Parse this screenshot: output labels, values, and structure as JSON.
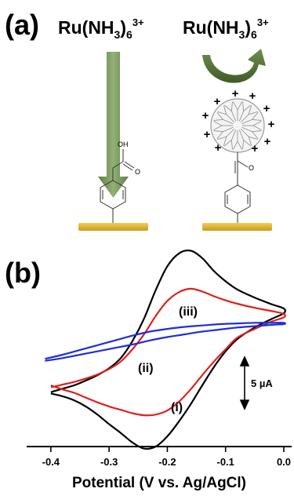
{
  "panel_a": {
    "label": "(a)",
    "ion_left": {
      "main": "Ru(NH",
      "sub": "3",
      "close": ")",
      "sub2": "6",
      "sup": "3+"
    },
    "ion_right": {
      "main": "Ru(NH",
      "sub": "3",
      "close": ")",
      "sub2": "6",
      "sup": "3+"
    },
    "left_molecule": {
      "oh": "OH",
      "carbonyl_o": "O"
    },
    "right_molecule": {
      "carbonyl_o": "O"
    },
    "plus_sign": "+",
    "colors": {
      "arrow": "#5b7b3c",
      "electrode": "#e0b93a",
      "dendrimer": "#9a9a9a"
    }
  },
  "panel_b": {
    "label": "(b)",
    "scale_bar": "5 µA",
    "curve_labels": {
      "i": "(i)",
      "ii": "(ii)",
      "iii": "(iii)"
    },
    "x_axis_title": "Potential (V vs. Ag/AgCl)"
  },
  "chart_data": {
    "type": "line",
    "xlabel": "Potential (V vs. Ag/AgCl)",
    "ylabel": "",
    "xlim": [
      -0.42,
      0.0
    ],
    "ylim": [
      -15,
      15
    ],
    "x_ticks": [
      -0.4,
      -0.3,
      -0.2,
      -0.1,
      0.0
    ],
    "x_tick_labels": [
      "-0.4",
      "-0.3",
      "-0.2",
      "-0.1",
      "0.0"
    ],
    "grid": false,
    "series": [
      {
        "name": "(i)",
        "color": "#000000",
        "x": [
          -0.4,
          -0.38,
          -0.36,
          -0.34,
          -0.32,
          -0.3,
          -0.28,
          -0.26,
          -0.24,
          -0.22,
          -0.2,
          -0.18,
          -0.16,
          -0.14,
          -0.12,
          -0.1,
          -0.08,
          -0.05,
          -0.02,
          0.0,
          0.0,
          -0.02,
          -0.05,
          -0.08,
          -0.1,
          -0.12,
          -0.14,
          -0.16,
          -0.18,
          -0.2,
          -0.22,
          -0.24,
          -0.26,
          -0.28,
          -0.3,
          -0.32,
          -0.34,
          -0.36,
          -0.38,
          -0.4
        ],
        "y": [
          -7.0,
          -6.5,
          -6.0,
          -5.3,
          -4.5,
          -3.5,
          -2.0,
          0.5,
          3.8,
          8.0,
          11.5,
          13.4,
          13.8,
          12.7,
          10.8,
          9.3,
          8.1,
          6.9,
          5.9,
          5.3,
          4.6,
          3.8,
          2.5,
          0.8,
          -1.0,
          -3.3,
          -6.0,
          -8.8,
          -11.3,
          -13.5,
          -15.0,
          -15.3,
          -14.4,
          -13.0,
          -11.7,
          -10.3,
          -9.1,
          -8.2,
          -7.6,
          -7.2
        ]
      },
      {
        "name": "(ii)",
        "color": "#e0201c",
        "x": [
          -0.4,
          -0.38,
          -0.36,
          -0.34,
          -0.32,
          -0.3,
          -0.28,
          -0.26,
          -0.24,
          -0.22,
          -0.2,
          -0.18,
          -0.16,
          -0.14,
          -0.12,
          -0.1,
          -0.08,
          -0.05,
          -0.02,
          0.0,
          0.0,
          -0.02,
          -0.05,
          -0.08,
          -0.1,
          -0.12,
          -0.14,
          -0.16,
          -0.18,
          -0.2,
          -0.22,
          -0.24,
          -0.26,
          -0.28,
          -0.3,
          -0.32,
          -0.34,
          -0.36,
          -0.38,
          -0.4
        ],
        "y": [
          -6.3,
          -5.9,
          -5.5,
          -5.0,
          -4.4,
          -3.6,
          -2.5,
          -0.7,
          1.5,
          4.2,
          6.4,
          7.7,
          8.2,
          7.8,
          7.1,
          6.5,
          6.0,
          5.4,
          4.9,
          4.5,
          4.0,
          3.4,
          2.3,
          1.0,
          -0.7,
          -2.5,
          -4.5,
          -6.6,
          -8.4,
          -9.7,
          -10.3,
          -10.4,
          -10.1,
          -9.6,
          -9.1,
          -8.5,
          -7.8,
          -7.1,
          -6.6,
          -6.0
        ]
      },
      {
        "name": "(iii)",
        "color": "#1f2ed8",
        "x": [
          -0.41,
          -0.38,
          -0.35,
          -0.32,
          -0.29,
          -0.26,
          -0.23,
          -0.2,
          -0.17,
          -0.14,
          -0.11,
          -0.08,
          -0.05,
          -0.02,
          0.0,
          0.0,
          -0.02,
          -0.05,
          -0.08,
          -0.11,
          -0.14,
          -0.17,
          -0.2,
          -0.23,
          -0.26,
          -0.29,
          -0.32,
          -0.35,
          -0.38,
          -0.41
        ],
        "y": [
          -2.1,
          -1.5,
          -0.8,
          -0.1,
          0.6,
          1.3,
          1.9,
          2.3,
          2.6,
          2.8,
          3.0,
          3.1,
          3.2,
          3.2,
          3.2,
          3.0,
          2.9,
          2.7,
          2.5,
          2.2,
          1.9,
          1.5,
          1.1,
          0.6,
          0.0,
          -0.5,
          -1.0,
          -1.5,
          -2.0,
          -2.4
        ]
      }
    ]
  }
}
